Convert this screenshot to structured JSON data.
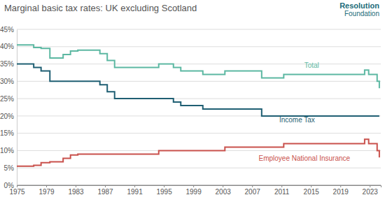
{
  "chart_data": {
    "type": "line",
    "title": "Marginal basic tax rates: UK excluding Scotland",
    "logo": [
      "Resolution",
      "Foundation"
    ],
    "x": [
      1975,
      1977.3,
      1978.3,
      1979.5,
      1981.3,
      1982.3,
      1983.3,
      1986.3,
      1987.3,
      1988.3,
      1994.3,
      1996.3,
      1997.3,
      2000.3,
      2003.3,
      2008.3,
      2011.3,
      2022.3,
      2022.85,
      2024.0,
      2024.3
    ],
    "series": [
      {
        "name": "Total",
        "color": "#5cb8a2",
        "line_style": "step",
        "values": [
          40.5,
          39.75,
          39.5,
          36.75,
          37.75,
          38.75,
          39,
          38,
          36,
          34,
          35,
          34,
          33,
          32,
          33,
          31,
          32,
          33.25,
          32,
          30,
          28
        ]
      },
      {
        "name": "Income Tax",
        "color": "#1f5f73",
        "line_style": "step",
        "values": [
          35,
          34,
          33,
          30,
          30,
          30,
          30,
          29,
          27,
          25,
          25,
          24,
          23,
          22,
          22,
          20,
          20,
          20,
          20,
          20,
          20
        ]
      },
      {
        "name": "Employee National Insurance",
        "color": "#c9514c",
        "line_style": "step",
        "values": [
          5.5,
          5.75,
          6.5,
          6.75,
          7.75,
          8.75,
          9,
          9,
          9,
          9,
          10,
          10,
          10,
          10,
          11,
          11,
          12,
          13.25,
          12,
          10,
          8
        ]
      }
    ],
    "xlim": [
      1975,
      2024.5
    ],
    "xticks": [
      1975,
      1979,
      1983,
      1987,
      1991,
      1995,
      1999,
      2003,
      2007,
      2011,
      2015,
      2019,
      2023
    ],
    "ylim": [
      0,
      45
    ],
    "yticks": [
      {
        "value": 0,
        "label": "0%"
      },
      {
        "value": 5,
        "label": "5%"
      },
      {
        "value": 10,
        "label": "10%"
      },
      {
        "value": 15,
        "label": "15%"
      },
      {
        "value": 20,
        "label": "20%"
      },
      {
        "value": 25,
        "label": "25%"
      },
      {
        "value": 30,
        "label": "30%"
      },
      {
        "value": 35,
        "label": "35%"
      },
      {
        "value": 40,
        "label": "40%"
      },
      {
        "value": 45,
        "label": "45%"
      }
    ],
    "grid": true
  }
}
